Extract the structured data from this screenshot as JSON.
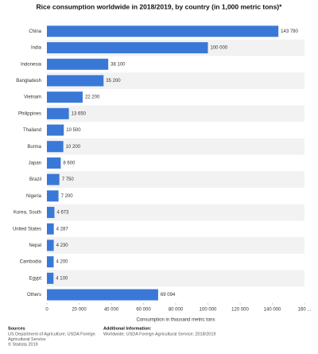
{
  "chart_data": {
    "type": "hbar",
    "title": "Rice consumption worldwide in 2018/2019, by country (in 1,000 metric tons)*",
    "x_label": "Consumption in thousand metric tons",
    "categories": [
      "China",
      "India",
      "Indonesia",
      "Bangladesh",
      "Vietnam",
      "Philippines",
      "Thailand",
      "Burma",
      "Japan",
      "Brazil",
      "Nigeria",
      "Korea, South",
      "United States",
      "Nepal",
      "Cambodia",
      "Egypt",
      "Others"
    ],
    "values": [
      143790,
      100000,
      38100,
      35200,
      22200,
      13650,
      10500,
      10200,
      8600,
      7750,
      7200,
      4673,
      4287,
      4230,
      4200,
      4100,
      69094
    ],
    "value_labels": [
      "143 790",
      "100 000",
      "38 100",
      "35 200",
      "22 200",
      "13 650",
      "10 500",
      "10 200",
      "8 600",
      "7 750",
      "7 200",
      "4 673",
      "4 287",
      "4 230",
      "4 200",
      "4 100",
      "69 094"
    ],
    "color": "#3a78d8",
    "xlim": [
      0,
      160000
    ],
    "xticks": [
      0,
      {
        "value": 20000,
        "label": "20 000"
      },
      {
        "value": 40000,
        "label": "40 000"
      },
      {
        "value": 60000,
        "label": "60 000"
      },
      {
        "value": 80000,
        "label": "80 000"
      },
      {
        "value": 100000,
        "label": "100 000"
      },
      {
        "value": 120000,
        "label": "120 000"
      },
      {
        "value": 140000,
        "label": "140 000"
      },
      {
        "value": 160000,
        "label": "160 ..."
      }
    ],
    "grid": false
  },
  "footer": {
    "sources_title": "Sources",
    "sources": [
      "US Department of Agriculture; USDA Foreign",
      "Agricultural Service",
      "© Statista 2019"
    ],
    "info_title": "Additional Information:",
    "info": [
      "Worldwide; USDA Foreign Agricultural Service; 2018/2019"
    ]
  }
}
